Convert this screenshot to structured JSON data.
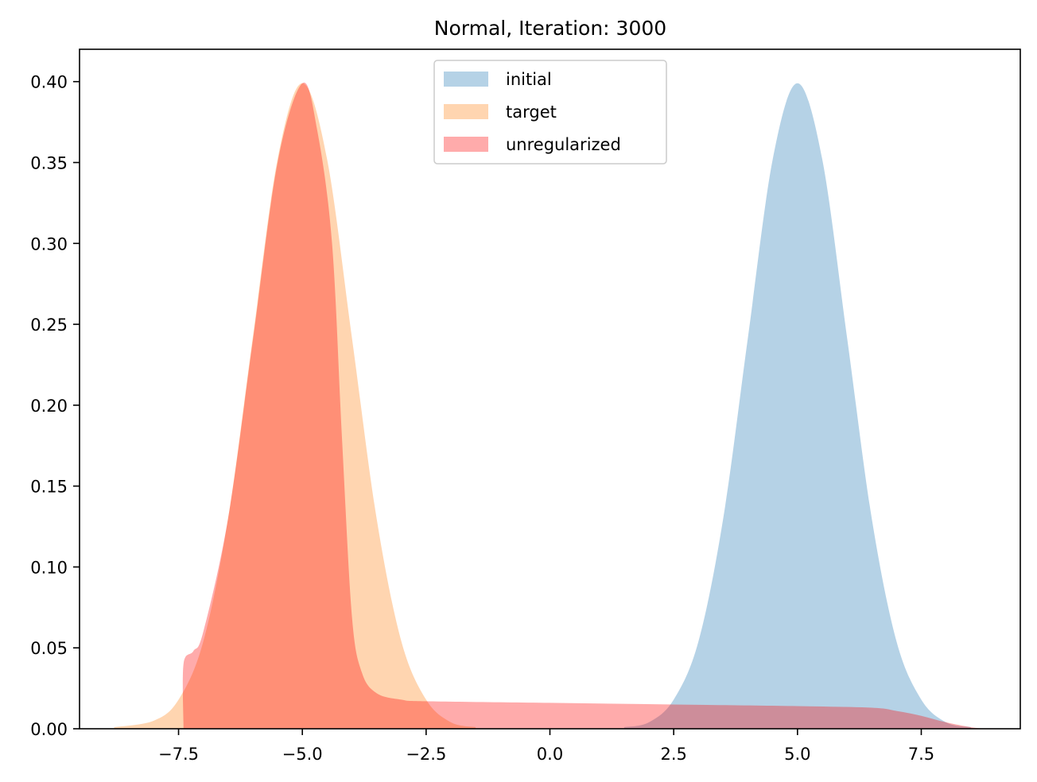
{
  "chart_data": {
    "type": "area",
    "title": "Normal, Iteration: 3000",
    "xlabel": "",
    "ylabel": "",
    "xlim": [
      -9.5,
      9.5
    ],
    "ylim": [
      0.0,
      0.42
    ],
    "x_ticks": [
      "−7.5",
      "−5.0",
      "−2.5",
      "0.0",
      "2.5",
      "5.0",
      "7.5"
    ],
    "x_tick_values": [
      -7.5,
      -5.0,
      -2.5,
      0.0,
      2.5,
      5.0,
      7.5
    ],
    "y_ticks": [
      "0.00",
      "0.05",
      "0.10",
      "0.15",
      "0.20",
      "0.25",
      "0.30",
      "0.35",
      "0.40"
    ],
    "y_tick_values": [
      0.0,
      0.05,
      0.1,
      0.15,
      0.2,
      0.25,
      0.3,
      0.35,
      0.4
    ],
    "grid": false,
    "legend_position": "top-center",
    "series": [
      {
        "name": "initial",
        "color": "#1f77b4",
        "opacity": 0.33,
        "x": [
          1.5,
          2.0,
          2.5,
          3.0,
          3.5,
          4.0,
          4.5,
          5.0,
          5.5,
          6.0,
          6.5,
          7.0,
          7.5,
          8.0,
          8.5
        ],
        "y": [
          0.001,
          0.004,
          0.018,
          0.054,
          0.13,
          0.242,
          0.352,
          0.399,
          0.352,
          0.242,
          0.13,
          0.054,
          0.018,
          0.004,
          0.001
        ]
      },
      {
        "name": "target",
        "color": "#ff7f0e",
        "opacity": 0.33,
        "x": [
          -8.8,
          -8.0,
          -7.5,
          -7.0,
          -6.5,
          -6.0,
          -5.5,
          -5.0,
          -4.5,
          -4.0,
          -3.5,
          -3.0,
          -2.5,
          -2.0,
          -1.5
        ],
        "y": [
          0.001,
          0.005,
          0.018,
          0.054,
          0.13,
          0.242,
          0.352,
          0.399,
          0.352,
          0.242,
          0.13,
          0.054,
          0.018,
          0.004,
          0.001
        ]
      },
      {
        "name": "unregularized",
        "color": "#ff0000",
        "opacity": 0.33,
        "x": [
          -7.4,
          -7.4,
          -7.2,
          -7.0,
          -6.5,
          -6.0,
          -5.5,
          -5.0,
          -4.7,
          -4.4,
          -4.2,
          -4.0,
          -3.8,
          -3.5,
          -3.0,
          -2.5,
          0.0,
          2.5,
          5.0,
          6.5,
          7.0,
          7.5,
          8.0,
          8.5,
          8.8
        ],
        "y": [
          0.0,
          0.04,
          0.048,
          0.06,
          0.13,
          0.24,
          0.35,
          0.399,
          0.37,
          0.3,
          0.18,
          0.07,
          0.035,
          0.022,
          0.018,
          0.017,
          0.016,
          0.015,
          0.014,
          0.013,
          0.011,
          0.008,
          0.004,
          0.001,
          0.0
        ]
      }
    ]
  }
}
